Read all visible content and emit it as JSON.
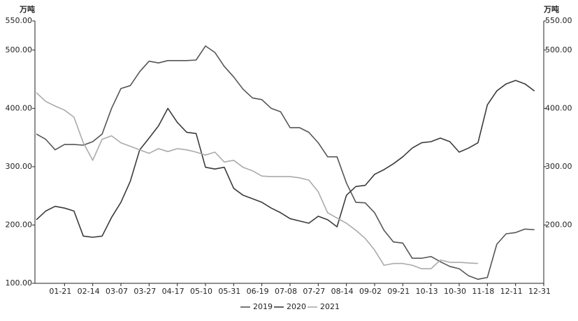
{
  "chart_data": {
    "type": "line",
    "y_unit": "万吨",
    "y2_unit": "万吨",
    "categories": [
      null,
      null,
      null,
      "01-21",
      null,
      null,
      "02-14",
      null,
      null,
      "03-07",
      null,
      null,
      "03-27",
      null,
      null,
      "04-17",
      null,
      null,
      "05-10",
      null,
      null,
      "05-31",
      null,
      null,
      "06-19",
      null,
      null,
      "07-08",
      null,
      null,
      "07-27",
      null,
      null,
      "08-14",
      null,
      null,
      "09-02",
      null,
      null,
      "09-21",
      null,
      null,
      "10-13",
      null,
      null,
      "10-30",
      null,
      null,
      "11-18",
      null,
      null,
      "12-11",
      null,
      null,
      "12-31"
    ],
    "series": [
      {
        "name": "2019",
        "color": "#555555",
        "values": [
          356,
          347,
          329,
          338,
          338,
          337,
          343,
          356,
          400,
          434,
          439,
          463,
          481,
          478,
          482,
          482,
          482,
          483,
          507,
          496,
          472,
          454,
          433,
          418,
          415,
          400,
          394,
          367,
          367,
          359,
          341,
          317,
          317,
          272,
          239,
          238,
          221,
          191,
          171,
          169,
          143,
          143,
          146,
          137,
          129,
          125,
          113,
          107,
          110,
          167,
          185,
          187,
          193,
          192,
          null
        ]
      },
      {
        "name": "2020",
        "color": "#3a3a3a",
        "values": [
          209,
          224,
          232,
          229,
          224,
          181,
          179,
          181,
          213,
          239,
          275,
          329,
          349,
          370,
          400,
          376,
          359,
          357,
          299,
          296,
          299,
          263,
          251,
          245,
          239,
          229,
          221,
          211,
          207,
          203,
          215,
          209,
          197,
          251,
          266,
          268,
          287,
          295,
          305,
          317,
          332,
          341,
          343,
          349,
          343,
          325,
          332,
          341,
          406,
          430,
          442,
          448,
          442,
          430,
          null
        ]
      },
      {
        "name": "2021",
        "color": "#aaaaaa",
        "values": [
          427,
          412,
          404,
          397,
          385,
          341,
          311,
          347,
          353,
          341,
          335,
          329,
          323,
          331,
          326,
          331,
          329,
          325,
          320,
          325,
          308,
          311,
          299,
          293,
          284,
          283,
          283,
          283,
          281,
          277,
          257,
          221,
          212,
          203,
          191,
          177,
          157,
          131,
          134,
          134,
          131,
          125,
          125,
          140,
          136,
          136,
          135,
          134,
          null,
          null,
          null,
          null,
          null,
          null,
          null
        ]
      }
    ],
    "ylim": [
      100,
      550
    ],
    "yticks": [
      {
        "value": 100,
        "label": "100.00"
      },
      {
        "value": 200,
        "label": "200.00"
      },
      {
        "value": 300,
        "label": "300.00"
      },
      {
        "value": 400,
        "label": "400.00"
      },
      {
        "value": 500,
        "label": "500.00"
      },
      {
        "value": 550,
        "label": "550.00"
      }
    ],
    "y2lim": [
      100,
      550
    ],
    "y2ticks": [
      {
        "value": 200,
        "label": "200.00"
      },
      {
        "value": 300,
        "label": "300.00"
      },
      {
        "value": 400,
        "label": "400.00"
      },
      {
        "value": 500,
        "label": "500.00"
      },
      {
        "value": 550,
        "label": "550.00"
      }
    ],
    "grid": false,
    "legend": "bottom"
  }
}
